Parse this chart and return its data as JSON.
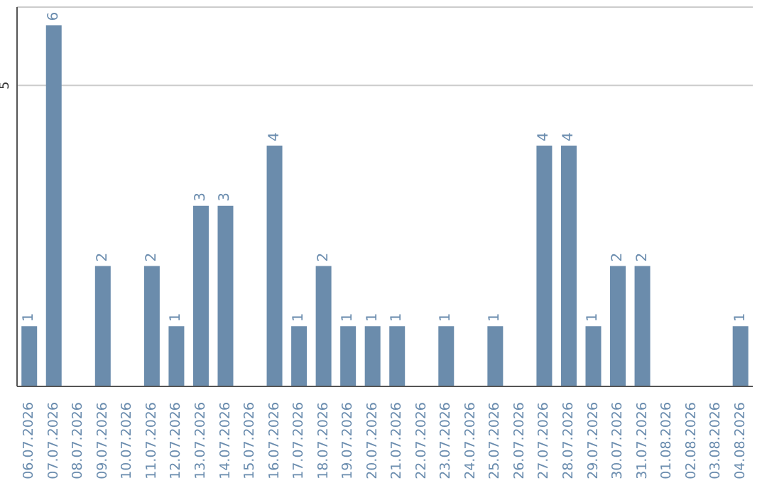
{
  "chart_data": {
    "type": "bar",
    "categories": [
      "06.07.2026",
      "07.07.2026",
      "08.07.2026",
      "09.07.2026",
      "10.07.2026",
      "11.07.2026",
      "12.07.2026",
      "13.07.2026",
      "14.07.2026",
      "15.07.2026",
      "16.07.2026",
      "17.07.2026",
      "18.07.2026",
      "19.07.2026",
      "20.07.2026",
      "21.07.2026",
      "22.07.2026",
      "23.07.2026",
      "24.07.2026",
      "25.07.2026",
      "26.07.2026",
      "27.07.2026",
      "28.07.2026",
      "29.07.2026",
      "30.07.2026",
      "31.07.2026",
      "01.08.2026",
      "02.08.2026",
      "03.08.2026",
      "04.08.2026"
    ],
    "values": [
      1,
      6,
      0,
      2,
      0,
      2,
      1,
      3,
      3,
      0,
      4,
      1,
      2,
      1,
      1,
      1,
      0,
      1,
      0,
      1,
      0,
      4,
      4,
      1,
      2,
      2,
      0,
      0,
      0,
      1
    ],
    "value_labels": [
      "1",
      "6",
      null,
      "2",
      null,
      "2",
      "1",
      "3",
      "3",
      null,
      "4",
      "1",
      "2",
      "1",
      "1",
      "1",
      null,
      "1",
      null,
      "1",
      null,
      "4",
      "4",
      "1",
      "2",
      "2",
      null,
      null,
      null,
      "1"
    ],
    "color": "#6b8cac",
    "ylim": [
      0,
      6.3
    ],
    "yticks": [
      5
    ],
    "grid": "y"
  }
}
